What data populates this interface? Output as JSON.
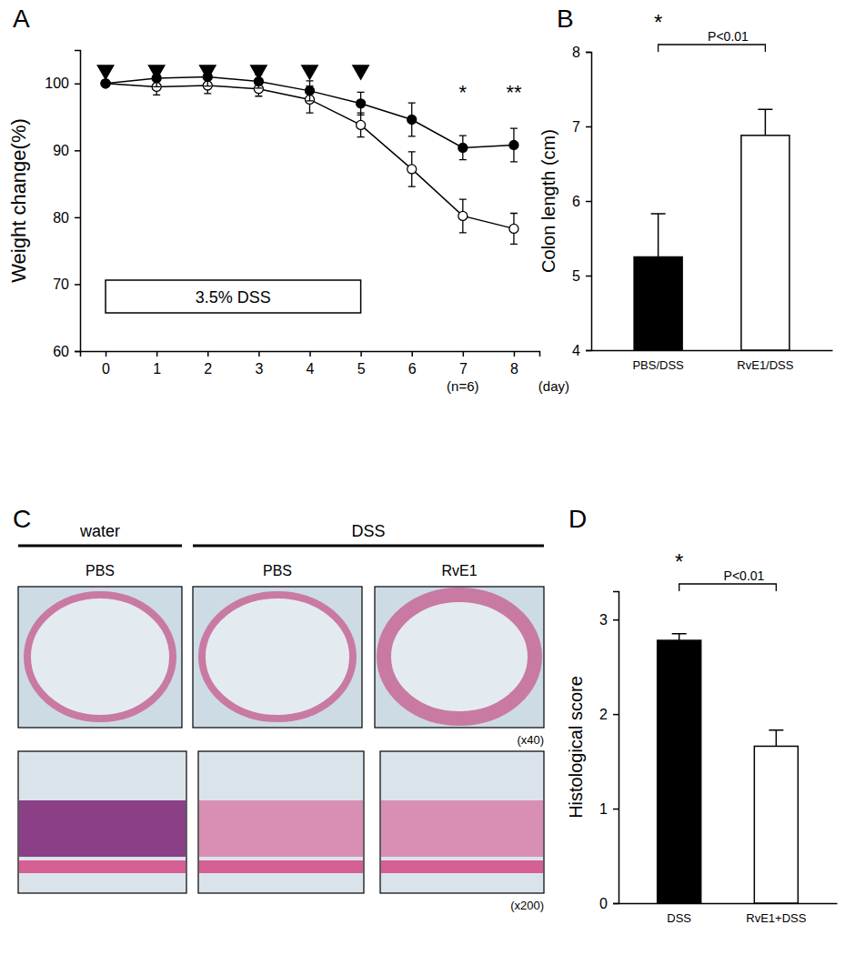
{
  "chart_data": [
    {
      "panel": "A",
      "type": "line",
      "ylabel": "Weight change(%)",
      "xlabel": "(day)",
      "x": [
        0,
        1,
        2,
        3,
        4,
        5,
        6,
        7,
        8
      ],
      "xlim": [
        -0.5,
        8.5
      ],
      "xticks": [
        0,
        1,
        2,
        3,
        4,
        5,
        6,
        7,
        8
      ],
      "ylim": [
        60,
        105
      ],
      "yticks": [
        60,
        70,
        80,
        90,
        100
      ],
      "series": [
        {
          "color": "#000000",
          "marker": "open-circle",
          "values": [
            100,
            99.5,
            99.7,
            99.2,
            97.6,
            93.8,
            87.2,
            80.2,
            78.3
          ],
          "errors": [
            0,
            1.2,
            1.2,
            1.1,
            2.0,
            1.8,
            2.6,
            2.5,
            2.3
          ]
        },
        {
          "color": "#000000",
          "marker": "filled-circle",
          "values": [
            100,
            100.8,
            101,
            100.3,
            98.9,
            97,
            94.6,
            90.4,
            90.8
          ],
          "errors": [
            0,
            1.3,
            1.4,
            1.0,
            1.5,
            1.7,
            2.5,
            1.8,
            2.5
          ]
        }
      ],
      "injections": [
        0,
        1,
        2,
        3,
        4,
        5
      ],
      "treatment": {
        "label": "3.5% DSS",
        "x": [
          0,
          5
        ]
      },
      "annotations": [
        {
          "text": "*",
          "x": 7
        },
        {
          "text": "**",
          "x": 8
        }
      ],
      "note": {
        "text": "(n=6)",
        "x": 7
      }
    },
    {
      "panel": "B",
      "type": "bar",
      "ylabel": "Colon length (cm)",
      "categories": [
        "PBS/DSS",
        "RvE1/DSS"
      ],
      "values": [
        5.25,
        6.88
      ],
      "errors": [
        0.58,
        0.35
      ],
      "colors": [
        "#000000",
        "#ffffff"
      ],
      "ylim": [
        4,
        8
      ],
      "yticks": [
        4,
        5,
        6,
        7,
        8
      ],
      "annotations": [
        {
          "text": "*"
        },
        {
          "text": "P<0.01"
        }
      ]
    },
    {
      "panel": "D",
      "type": "bar",
      "ylabel": "Histological score",
      "categories": [
        "DSS",
        "RvE1+DSS"
      ],
      "values": [
        2.78,
        1.66
      ],
      "errors": [
        0.07,
        0.17
      ],
      "colors": [
        "#000000",
        "#ffffff"
      ],
      "ylim": [
        0,
        3.3
      ],
      "yticks": [
        0,
        1,
        2,
        3
      ],
      "annotations": [
        {
          "text": "*"
        },
        {
          "text": "P<0.01"
        }
      ]
    }
  ],
  "histology": {
    "panel": "C",
    "groups": [
      {
        "label": "water",
        "columns": [
          "PBS"
        ]
      },
      {
        "label": "DSS",
        "columns": [
          "PBS",
          "RvE1"
        ]
      }
    ],
    "magnifications": [
      "(x40)",
      "(x200)"
    ]
  }
}
